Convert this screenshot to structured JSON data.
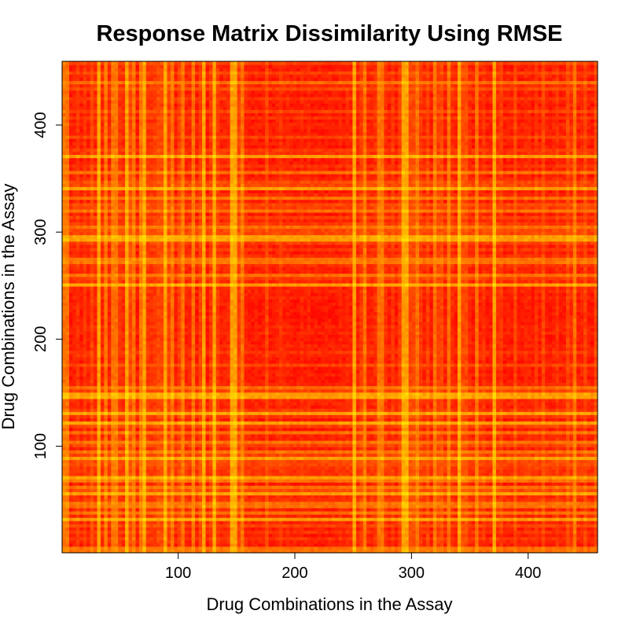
{
  "chart_data": {
    "type": "heatmap",
    "title": "Response Matrix Dissimilarity Using RMSE",
    "xlabel": "Drug Combinations in the Assay",
    "ylabel": "Drug Combinations in the Assay",
    "n": 459,
    "xlim": [
      1,
      459
    ],
    "ylim": [
      1,
      459
    ],
    "x_ticks": [
      100,
      200,
      300,
      400
    ],
    "y_ticks": [
      100,
      200,
      300,
      400
    ],
    "colormap": [
      "#ff0000",
      "#ff4000",
      "#ff8000",
      "#ffbf00",
      "#ffff00"
    ],
    "dominant_color": "#ff1a00",
    "highlight_color": "#ffff00",
    "bright_indices": [
      2,
      5,
      12,
      18,
      25,
      31,
      38,
      44,
      47,
      55,
      60,
      68,
      70,
      71,
      88,
      95,
      102,
      111,
      121,
      130,
      145,
      148,
      155,
      175,
      188,
      205,
      211,
      237,
      238,
      250,
      258,
      270,
      273,
      291,
      292,
      295,
      305,
      320,
      330,
      340,
      356,
      370,
      388,
      405,
      412,
      425,
      440
    ],
    "dark_blocks": [
      [
        160,
        240
      ],
      [
        195,
        245
      ],
      [
        5,
        30
      ],
      [
        380,
        430
      ]
    ],
    "grid": false,
    "legend": "none"
  }
}
